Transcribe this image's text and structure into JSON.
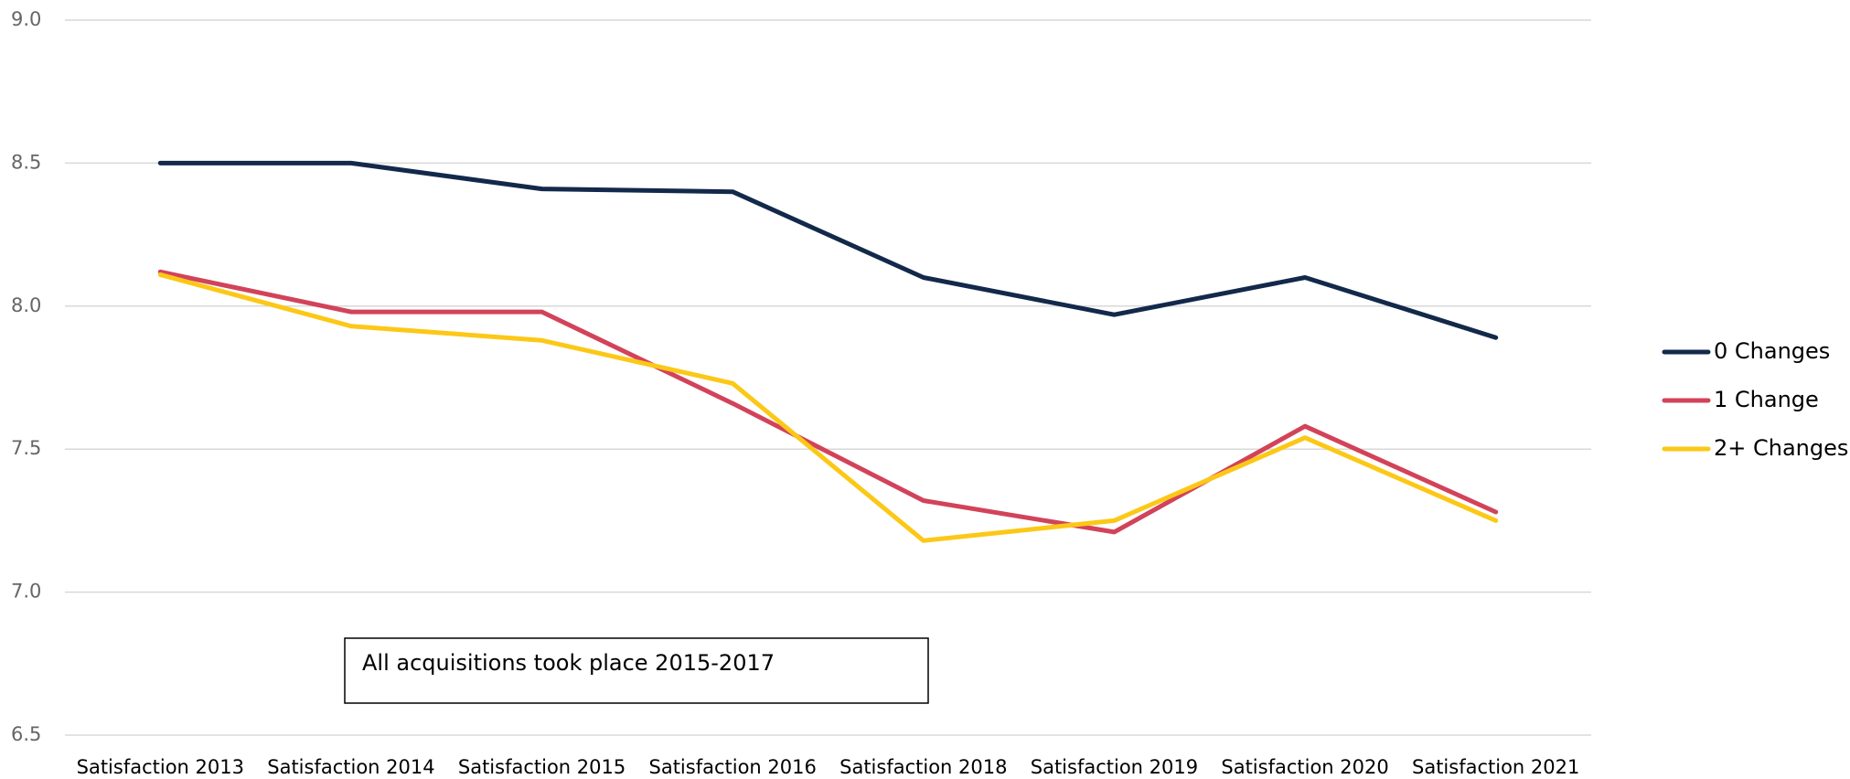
{
  "chart_data": {
    "type": "line",
    "categories": [
      "Satisfaction 2013",
      "Satisfaction 2014",
      "Satisfaction 2015",
      "Satisfaction 2016",
      "Satisfaction 2018",
      "Satisfaction 2019",
      "Satisfaction 2020",
      "Satisfaction 2021"
    ],
    "series": [
      {
        "name": "0 Changes",
        "color": "#13294b",
        "values": [
          8.5,
          8.5,
          8.41,
          8.4,
          8.1,
          7.97,
          8.1,
          7.89
        ]
      },
      {
        "name": "1 Change",
        "color": "#d2435a",
        "values": [
          8.12,
          7.98,
          7.98,
          7.66,
          7.32,
          7.21,
          7.58,
          7.28
        ]
      },
      {
        "name": "2+ Changes",
        "color": "#fcc817",
        "values": [
          8.11,
          7.93,
          7.88,
          7.73,
          7.18,
          7.25,
          7.54,
          7.25
        ]
      }
    ],
    "ylim": [
      6.5,
      9.0
    ],
    "yticks": [
      6.5,
      {
        "value": 7.0,
        "label": "7.0"
      },
      7.5,
      {
        "value": 8.0,
        "label": "8.0"
      },
      8.5,
      {
        "value": 9.0,
        "label": "9.0"
      }
    ],
    "grid": true,
    "legend": "right",
    "annotation": "All acquisitions took place 2015-2017"
  }
}
